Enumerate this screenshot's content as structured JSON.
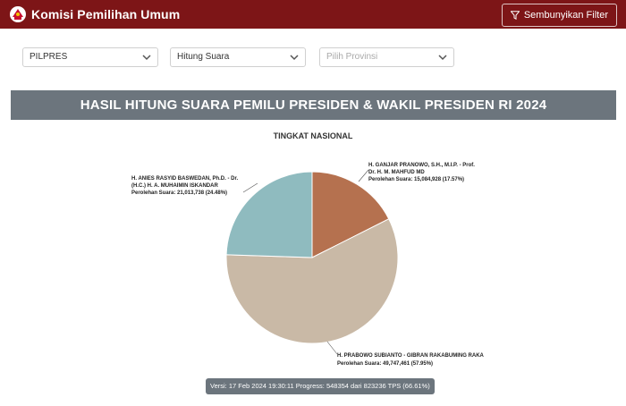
{
  "header": {
    "app_title": "Komisi Pemilihan Umum",
    "filter_button_label": "Sembunyikan Filter"
  },
  "filters": {
    "election_type": "PILPRES",
    "count_type": "Hitung Suara",
    "province_placeholder": "Pilih Provinsi"
  },
  "page": {
    "banner_title": "HASIL HITUNG SUARA PEMILU PRESIDEN & WAKIL PRESIDEN RI 2024",
    "chart_subtitle": "TINGKAT NASIONAL",
    "version_text": "Versi: 17 Feb 2024 19:30:11 Progress: 548354 dari 823236 TPS (66.61%)"
  },
  "chart_data": {
    "type": "pie",
    "title": "TINGKAT NASIONAL",
    "slices": [
      {
        "name_line1": "H. GANJAR PRANOWO, S.H., M.I.P. - Prof.",
        "name_line2": "Dr. H. M. MAHFUD MD",
        "votes_label": "Perolehan Suara: 15,084,928 (17.57%)",
        "votes": 15084928,
        "percent": 17.57,
        "color": "#b5714f"
      },
      {
        "name_line1": "H. PRABOWO SUBIANTO - GIBRAN RAKABUMING RAKA",
        "name_line2": "",
        "votes_label": "Perolehan Suara: 49,747,461 (57.95%)",
        "votes": 49747461,
        "percent": 57.95,
        "color": "#c9b9a6"
      },
      {
        "name_line1": "H. ANIES RASYID BASWEDAN, Ph.D. - Dr.",
        "name_line2": "(H.C.) H. A. MUHAIMIN ISKANDAR",
        "votes_label": "Perolehan Suara: 21,013,738 (24.48%)",
        "votes": 21013738,
        "percent": 24.48,
        "color": "#8fbbbf"
      }
    ]
  }
}
